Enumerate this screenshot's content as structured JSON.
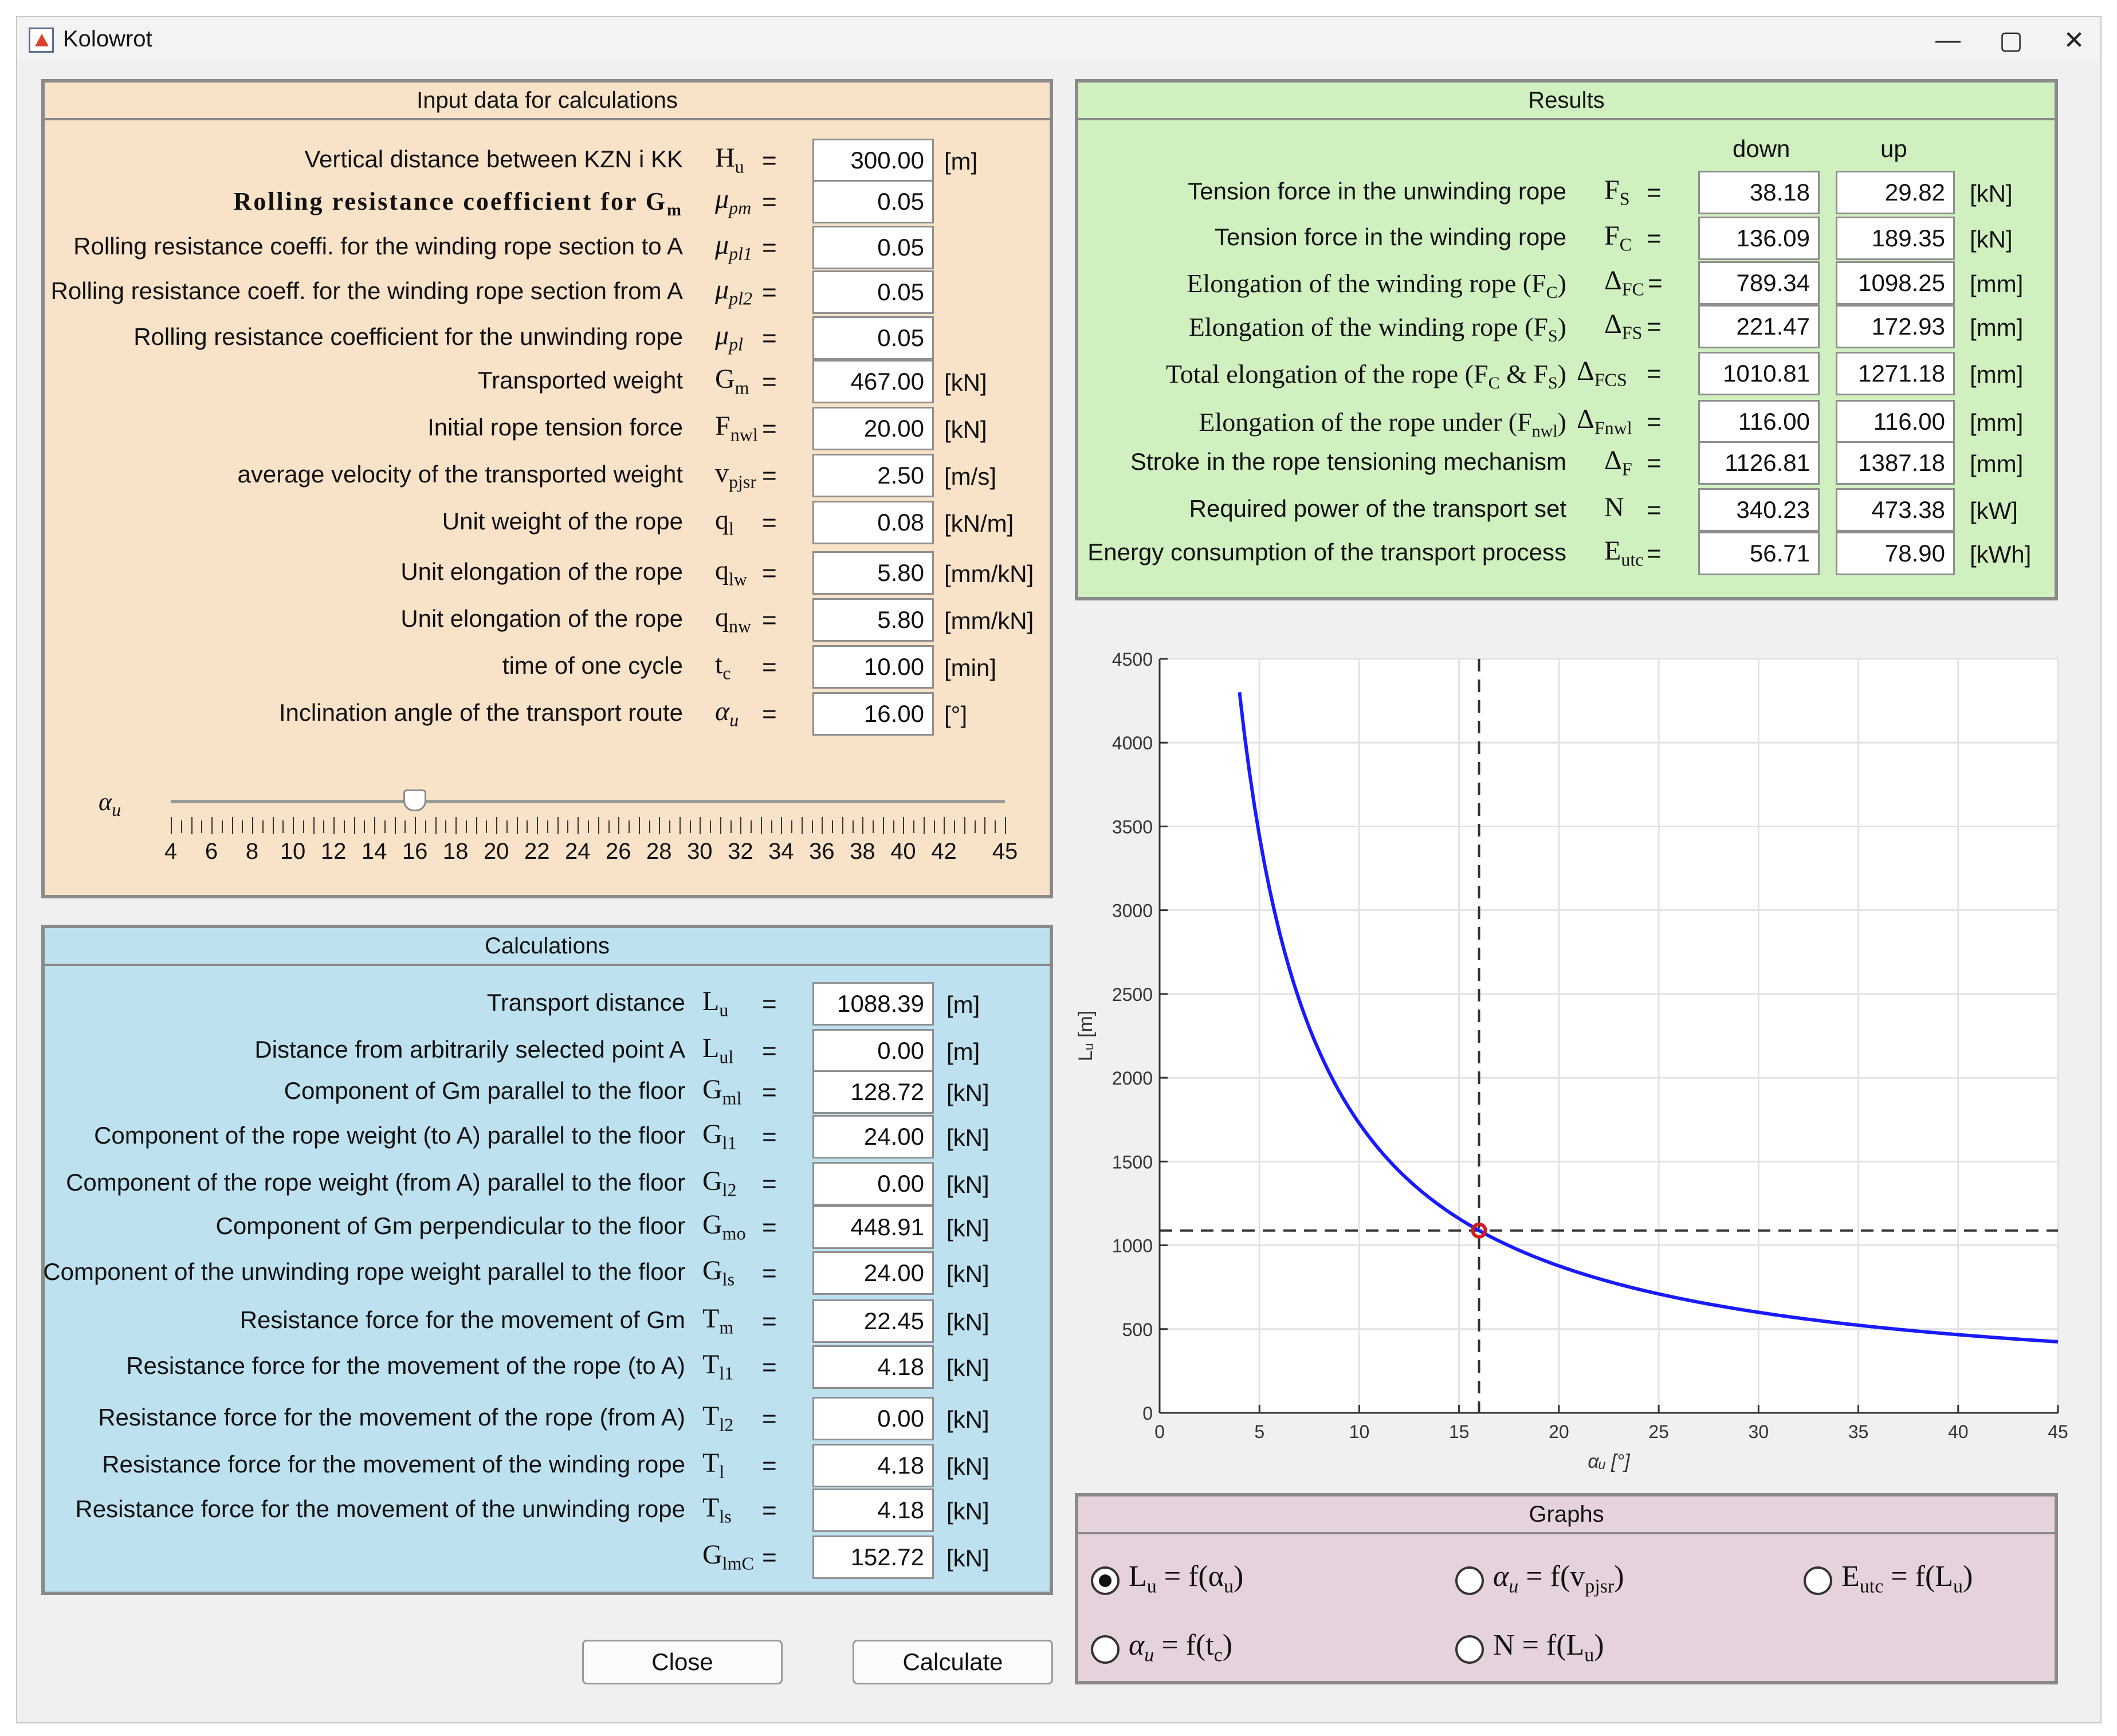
{
  "window": {
    "title": "Kolowrot"
  },
  "input": {
    "title": "Input data for calculations",
    "rows": [
      {
        "label": "Vertical distance between KZN i KK",
        "sym": "H",
        "sub": "u",
        "value": "300.00",
        "unit": "[m]"
      },
      {
        "label": "Rolling resistance coefficient for G",
        "labelsub": "m",
        "sym": "μ",
        "sub": "pm",
        "value": "0.05",
        "unit": ""
      },
      {
        "label": "Rolling resistance coeffi. for the winding rope section to A",
        "sym": "μ",
        "sub": "pl1",
        "value": "0.05",
        "unit": ""
      },
      {
        "label": "Rolling resistance coeff. for the winding rope section from A",
        "sym": "μ",
        "sub": "pl2",
        "value": "0.05",
        "unit": ""
      },
      {
        "label": "Rolling resistance coefficient for the unwinding rope",
        "sym": "μ",
        "sub": "pl",
        "value": "0.05",
        "unit": ""
      },
      {
        "label": "Transported weight",
        "sym": "G",
        "sub": "m",
        "value": "467.00",
        "unit": "[kN]"
      },
      {
        "label": "Initial rope tension force",
        "sym": "F",
        "sub": "nwl",
        "value": "20.00",
        "unit": "[kN]"
      },
      {
        "label": "average velocity of the transported weight",
        "sym": "v",
        "sub": "pjsr",
        "value": "2.50",
        "unit": "[m/s]"
      },
      {
        "label": "Unit weight of the rope",
        "sym": "q",
        "sub": "l",
        "value": "0.08",
        "unit": "[kN/m]"
      },
      {
        "label": "Unit elongation of the rope",
        "sym": "q",
        "sub": "lw",
        "value": "5.80",
        "unit": "[mm/kN]"
      },
      {
        "label": "Unit elongation of the rope",
        "sym": "q",
        "sub": "nw",
        "value": "5.80",
        "unit": "[mm/kN]"
      },
      {
        "label": "time of one cycle",
        "sym": "t",
        "sub": "c",
        "value": "10.00",
        "unit": "[min]"
      },
      {
        "label": "Inclination angle of the transport route",
        "sym": "α",
        "sub": "u",
        "value": "16.00",
        "unit": "[°]"
      }
    ],
    "slider": {
      "label": "α",
      "sub": "u",
      "min": 4,
      "max": 45,
      "value": 16,
      "ticks": [
        "4",
        "6",
        "8",
        "10",
        "12",
        "14",
        "16",
        "18",
        "20",
        "22",
        "24",
        "26",
        "28",
        "30",
        "32",
        "34",
        "36",
        "38",
        "40",
        "42",
        "45"
      ]
    }
  },
  "calc": {
    "title": "Calculations",
    "rows": [
      {
        "label": "Transport distance",
        "sym": "L",
        "sub": "u",
        "value": "1088.39",
        "unit": "[m]"
      },
      {
        "label": "Distance from arbitrarily selected point A",
        "sym": "L",
        "sub": "ul",
        "value": "0.00",
        "unit": "[m]"
      },
      {
        "label": "Component of Gm parallel to the floor",
        "sym": "G",
        "sub": "ml",
        "value": "128.72",
        "unit": "[kN]"
      },
      {
        "label": "Component of the rope weight  (to A) parallel to the floor",
        "sym": "G",
        "sub": "l1",
        "value": "24.00",
        "unit": "[kN]"
      },
      {
        "label": "Component of the rope weight (from  A) parallel to the floor",
        "sym": "G",
        "sub": "l2",
        "value": "0.00",
        "unit": "[kN]"
      },
      {
        "label": "Component of Gm perpendicular to the floor",
        "sym": "G",
        "sub": "mo",
        "value": "448.91",
        "unit": "[kN]"
      },
      {
        "label": "Component of the unwinding rope weight parallel to the floor",
        "sym": "G",
        "sub": "ls",
        "value": "24.00",
        "unit": "[kN]"
      },
      {
        "label": "Resistance force for the movement of Gm",
        "sym": "T",
        "sub": "m",
        "value": "22.45",
        "unit": "[kN]"
      },
      {
        "label": "Resistance force for the movement of the rope (to A)",
        "sym": "T",
        "sub": "l1",
        "value": "4.18",
        "unit": "[kN]"
      },
      {
        "label": "Resistance force for the movement of the rope (from A)",
        "sym": "T",
        "sub": "l2",
        "value": "0.00",
        "unit": "[kN]"
      },
      {
        "label": "Resistance force for the movement of the winding rope",
        "sym": "T",
        "sub": "l",
        "value": "4.18",
        "unit": "[kN]"
      },
      {
        "label": "Resistance force for the movement of the unwinding rope",
        "sym": "T",
        "sub": "ls",
        "value": "4.18",
        "unit": "[kN]"
      },
      {
        "label": "",
        "sym": "G",
        "sub": "lmC",
        "value": "152.72",
        "unit": "[kN]"
      }
    ]
  },
  "results": {
    "title": "Results",
    "col_down": "down",
    "col_up": "up",
    "rows": [
      {
        "label": "Tension force in the unwinding rope",
        "sym": "F",
        "sub": "S",
        "eq": "=",
        "down": "38.18",
        "up": "29.82",
        "unit": "[kN]"
      },
      {
        "label": "Tension force in the winding rope",
        "sym": "F",
        "sub": "C",
        "eq": "=",
        "down": "136.09",
        "up": "189.35",
        "unit": "[kN]"
      },
      {
        "label": "Elongation  of  the  winding  rope  (F",
        "labelsub": "C",
        "labelend": ")",
        "sym": "Δ",
        "sub": "FC",
        "eq": "=",
        "down": "789.34",
        "up": "1098.25",
        "unit": "[mm]"
      },
      {
        "label": "Elongation  of  the  winding  rope  (F",
        "labelsub": "S",
        "labelend": ")",
        "sym": "Δ",
        "sub": "FS",
        "eq": "=",
        "down": "221.47",
        "up": "172.93",
        "unit": "[mm]"
      },
      {
        "label": "Total  elongation  of  the  rope  (F",
        "labelsub": "C",
        "labelend": "  &  F",
        "labelsub2": "S",
        "labelend2": ")",
        "sym": "Δ",
        "sub": "FCS",
        "eq": "=",
        "down": "1010.81",
        "up": "1271.18",
        "unit": "[mm]"
      },
      {
        "label": "Elongation  of  the  rope  under  (F",
        "labelsub": "nwl",
        "labelend": ")",
        "sym": "Δ",
        "sub": "Fnwl",
        "eq": "=",
        "down": "116.00",
        "up": "116.00",
        "unit": "[mm]"
      },
      {
        "label": "Stroke in the rope tensioning mechanism",
        "sym": "Δ",
        "sub": "F",
        "eq": "=",
        "down": "1126.81",
        "up": "1387.18",
        "unit": "[mm]"
      },
      {
        "label": "Required power of the transport set",
        "sym": "N",
        "sub": "",
        "eq": "=",
        "down": "340.23",
        "up": "473.38",
        "unit": "[kW]"
      },
      {
        "label": "Energy consumption of the transport process",
        "sym": "E",
        "sub": "utc",
        "eq": "=",
        "down": "56.71",
        "up": "78.90",
        "unit": "[kWh]"
      }
    ]
  },
  "graphs": {
    "title": "Graphs",
    "options": [
      {
        "a": "L",
        "asub": "u",
        "b": "f(α",
        "bsub": "u",
        "c": ")",
        "selected": true
      },
      {
        "a": "α",
        "asub": "u",
        "b": "f(v",
        "bsub": "pjsr",
        "c": ")",
        "selected": false
      },
      {
        "a": "E",
        "asub": "utc",
        "b": "f(L",
        "bsub": "u",
        "c": ")",
        "selected": false
      },
      {
        "a": "α",
        "asub": "u",
        "b": "f(t",
        "bsub": "c",
        "c": ")",
        "selected": false
      },
      {
        "a": "N",
        "asub": "",
        "b": "f(L",
        "bsub": "u",
        "c": ")",
        "selected": false
      }
    ]
  },
  "buttons": {
    "close": "Close",
    "calculate": "Calculate"
  },
  "chart_data": {
    "type": "line",
    "xlabel": "α_u [°]",
    "ylabel": "L_u [m]",
    "xlim": [
      0,
      45
    ],
    "ylim": [
      0,
      4500
    ],
    "xticks": [
      "0",
      "5",
      "10",
      "15",
      "20",
      "25",
      "30",
      "35",
      "40",
      "45"
    ],
    "yticks": [
      "0",
      "500",
      "1000",
      "1500",
      "2000",
      "2500",
      "3000",
      "3500",
      "4000",
      "4500"
    ],
    "grid": true,
    "series": [
      {
        "name": "",
        "color": "#1a1aff",
        "x": [
          4,
          5,
          6,
          8,
          10,
          12,
          14,
          16,
          18,
          20,
          25,
          30,
          35,
          40,
          45
        ],
        "y": [
          4300,
          3442,
          2870,
          2157,
          1728,
          1443,
          1241,
          1088,
          971,
          877,
          710,
          600,
          523,
          467,
          424
        ]
      }
    ],
    "marker": {
      "x": 16,
      "y": 1088.39,
      "color": "#d21b1b"
    },
    "crosshair": {
      "x": 16,
      "y": 1088.39
    }
  }
}
